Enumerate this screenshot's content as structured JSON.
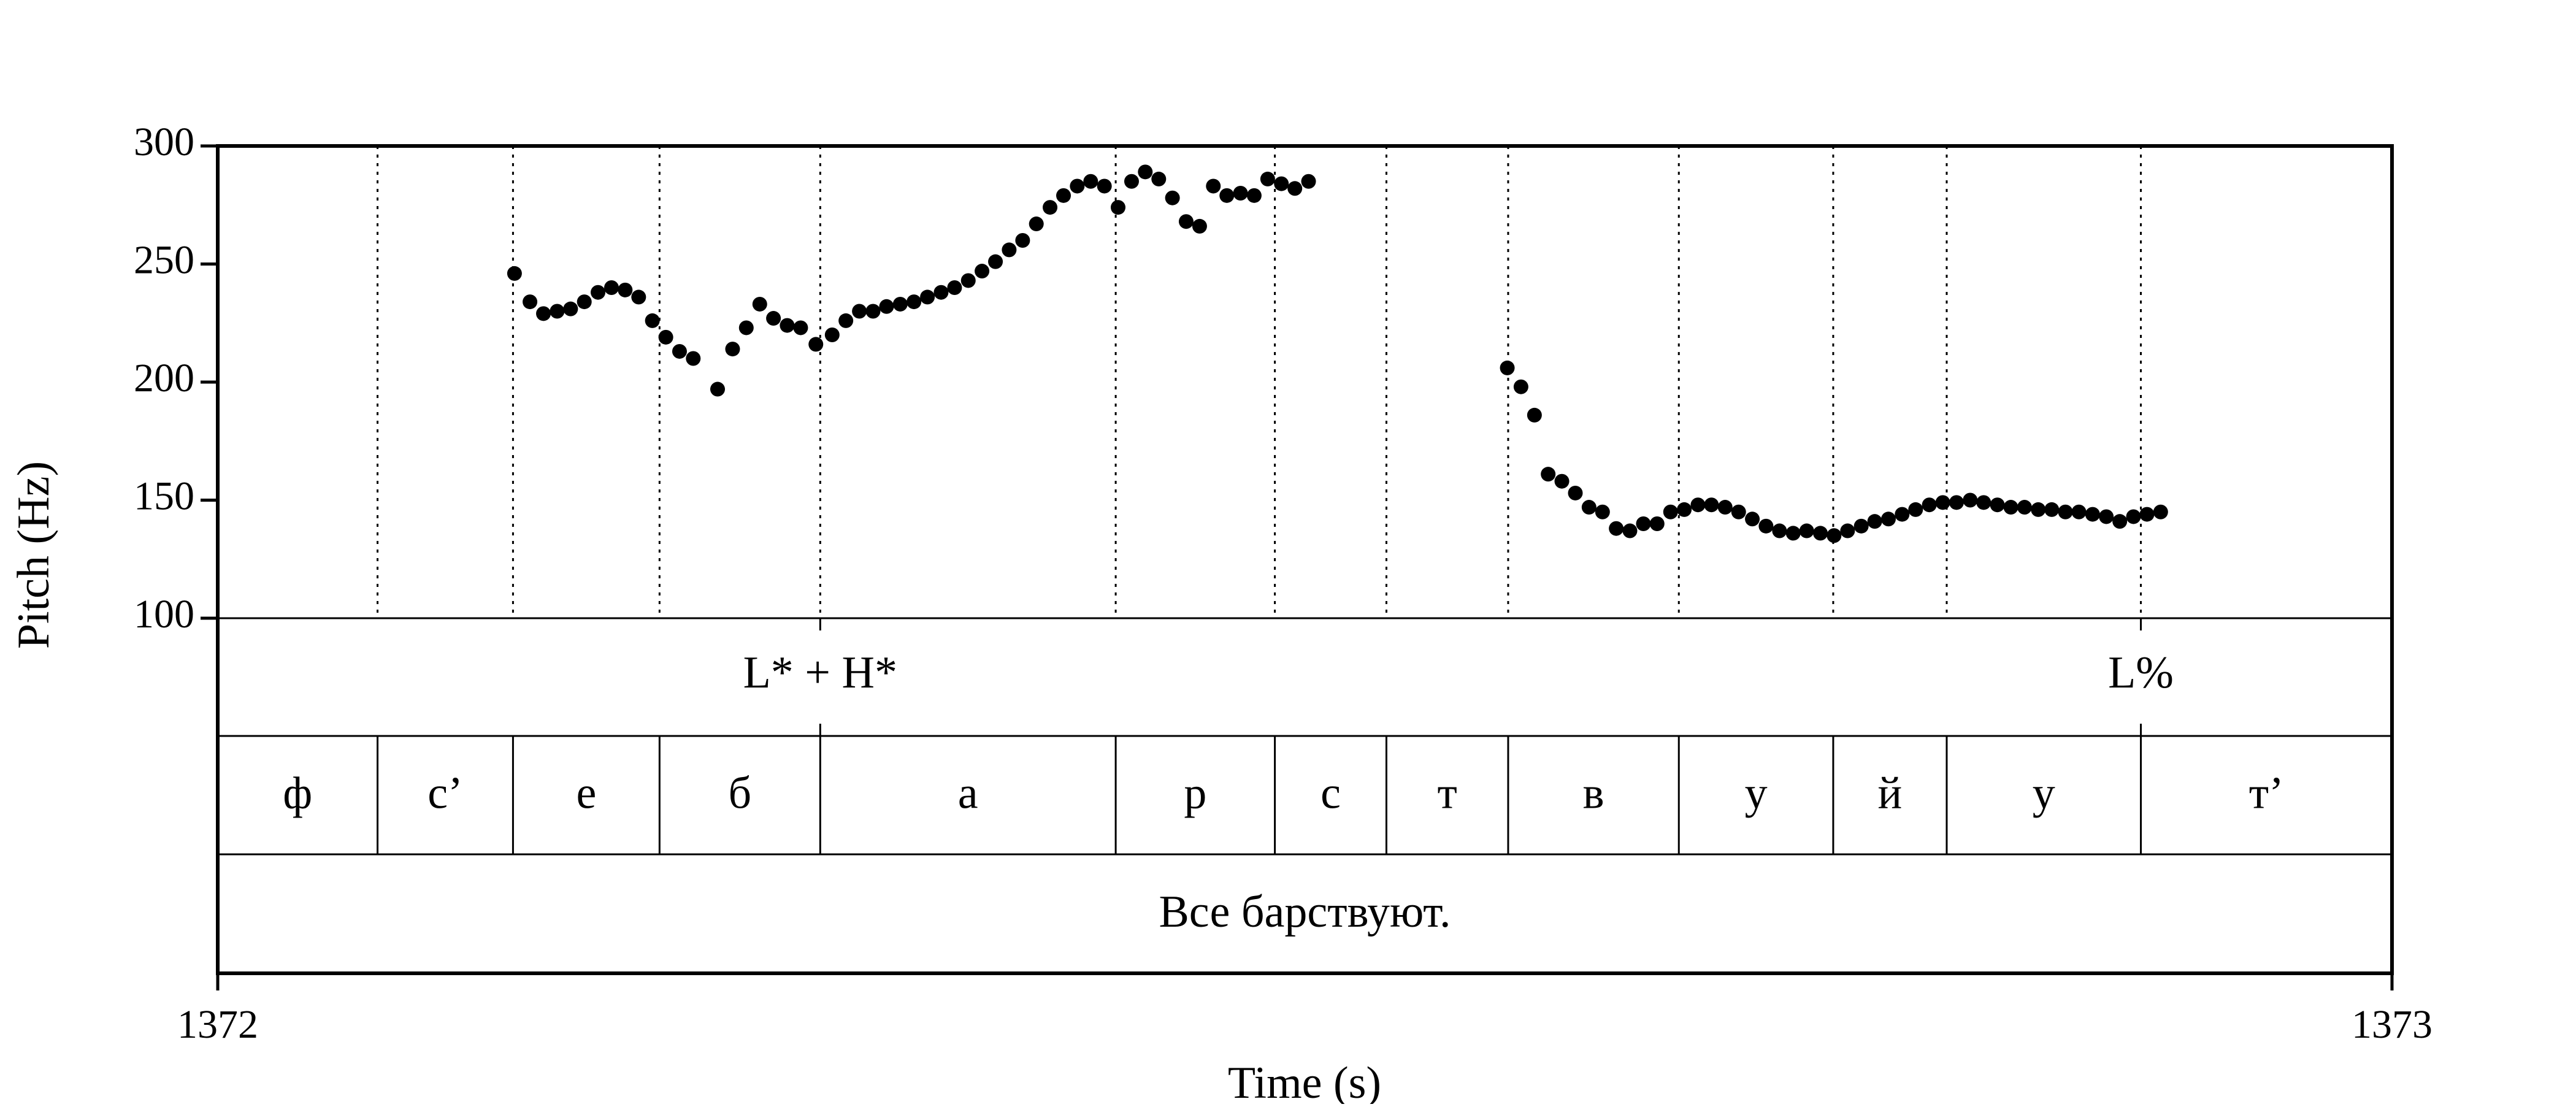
{
  "chart_data": {
    "type": "scatter",
    "xlabel": "Time (s)",
    "ylabel": "Pitch (Hz)",
    "xlim": [
      1372,
      1373
    ],
    "ylim": [
      100,
      300
    ],
    "x_tick_labels": [
      "1372",
      "1373"
    ],
    "y_ticks": [
      100,
      150,
      200,
      250,
      300
    ],
    "y_tick_labels": [
      "100",
      "150",
      "200",
      "250",
      "300"
    ],
    "grid": "dotted vertical lines at segment boundaries",
    "series": [
      {
        "marker_color": "#000000",
        "points": [
          [
            1372.1365,
            246
          ],
          [
            1372.1436,
            234
          ],
          [
            1372.1498,
            229
          ],
          [
            1372.1561,
            230
          ],
          [
            1372.1623,
            231
          ],
          [
            1372.1686,
            234
          ],
          [
            1372.1749,
            238
          ],
          [
            1372.1811,
            240
          ],
          [
            1372.1874,
            239
          ],
          [
            1372.1936,
            236
          ],
          [
            1372.1999,
            226
          ],
          [
            1372.2061,
            219
          ],
          [
            1372.2124,
            213
          ],
          [
            1372.2187,
            210
          ],
          [
            1372.2299,
            197
          ],
          [
            1372.2368,
            214
          ],
          [
            1372.2431,
            223
          ],
          [
            1372.2493,
            233
          ],
          [
            1372.2556,
            227
          ],
          [
            1372.2619,
            224
          ],
          [
            1372.2681,
            223
          ],
          [
            1372.2751,
            216
          ],
          [
            1372.2826,
            220
          ],
          [
            1372.2889,
            226
          ],
          [
            1372.2951,
            230
          ],
          [
            1372.3014,
            230
          ],
          [
            1372.3076,
            232
          ],
          [
            1372.3139,
            233
          ],
          [
            1372.3202,
            234
          ],
          [
            1372.3264,
            236
          ],
          [
            1372.3327,
            238
          ],
          [
            1372.3389,
            240
          ],
          [
            1372.3452,
            243
          ],
          [
            1372.3515,
            247
          ],
          [
            1372.3577,
            251
          ],
          [
            1372.364,
            256
          ],
          [
            1372.3702,
            260
          ],
          [
            1372.3765,
            267
          ],
          [
            1372.3828,
            274
          ],
          [
            1372.389,
            279
          ],
          [
            1372.3953,
            283
          ],
          [
            1372.4015,
            285
          ],
          [
            1372.4078,
            283
          ],
          [
            1372.4141,
            274
          ],
          [
            1372.4203,
            285
          ],
          [
            1372.4266,
            289
          ],
          [
            1372.4328,
            286
          ],
          [
            1372.4391,
            278
          ],
          [
            1372.4454,
            268
          ],
          [
            1372.4516,
            266
          ],
          [
            1372.4579,
            283
          ],
          [
            1372.4641,
            279
          ],
          [
            1372.4704,
            280
          ],
          [
            1372.4767,
            279
          ],
          [
            1372.4829,
            286
          ],
          [
            1372.4892,
            284
          ],
          [
            1372.4954,
            282
          ],
          [
            1372.5017,
            285
          ],
          [
            1372.5931,
            206
          ],
          [
            1372.5994,
            198
          ],
          [
            1372.6056,
            186
          ],
          [
            1372.6119,
            161
          ],
          [
            1372.6182,
            158
          ],
          [
            1372.6244,
            153
          ],
          [
            1372.6307,
            147
          ],
          [
            1372.6369,
            145
          ],
          [
            1372.6432,
            138
          ],
          [
            1372.6495,
            137
          ],
          [
            1372.6557,
            140
          ],
          [
            1372.662,
            140
          ],
          [
            1372.6682,
            145
          ],
          [
            1372.6745,
            146
          ],
          [
            1372.6808,
            148
          ],
          [
            1372.687,
            148
          ],
          [
            1372.6933,
            147
          ],
          [
            1372.6995,
            145
          ],
          [
            1372.7058,
            142
          ],
          [
            1372.7121,
            139
          ],
          [
            1372.7183,
            137
          ],
          [
            1372.7246,
            136
          ],
          [
            1372.7308,
            137
          ],
          [
            1372.7371,
            136
          ],
          [
            1372.7434,
            135
          ],
          [
            1372.7496,
            137
          ],
          [
            1372.7559,
            139
          ],
          [
            1372.7621,
            141
          ],
          [
            1372.7684,
            142
          ],
          [
            1372.7747,
            144
          ],
          [
            1372.7809,
            146
          ],
          [
            1372.7872,
            148
          ],
          [
            1372.7934,
            149
          ],
          [
            1372.7997,
            149
          ],
          [
            1372.806,
            150
          ],
          [
            1372.8122,
            149
          ],
          [
            1372.8185,
            148
          ],
          [
            1372.8247,
            147
          ],
          [
            1372.831,
            147
          ],
          [
            1372.8373,
            146
          ],
          [
            1372.8435,
            146
          ],
          [
            1372.8498,
            145
          ],
          [
            1372.856,
            145
          ],
          [
            1372.8623,
            144
          ],
          [
            1372.8686,
            143
          ],
          [
            1372.8748,
            141
          ],
          [
            1372.8811,
            143
          ],
          [
            1372.8873,
            144
          ],
          [
            1372.8936,
            145
          ]
        ]
      }
    ],
    "boundaries": [
      1372.0735,
      1372.1358,
      1372.2032,
      1372.2771,
      1372.413,
      1372.4862,
      1372.5375,
      1372.5935,
      1372.672,
      1372.743,
      1372.7952,
      1372.8845
    ],
    "tiers": [
      {
        "name": "tones",
        "intervals": [
          {
            "start": 1372.2771,
            "end": 1372.2771,
            "point": true,
            "label": "L* + H*"
          },
          {
            "start": 1372.8845,
            "end": 1372.8845,
            "point": true,
            "label": "L%"
          }
        ]
      },
      {
        "name": "segments",
        "intervals": [
          {
            "start": 1372.0,
            "end": 1372.0735,
            "label": "ф"
          },
          {
            "start": 1372.0735,
            "end": 1372.1358,
            "label": "с’"
          },
          {
            "start": 1372.1358,
            "end": 1372.2032,
            "label": "е"
          },
          {
            "start": 1372.2032,
            "end": 1372.2771,
            "label": "б"
          },
          {
            "start": 1372.2771,
            "end": 1372.413,
            "label": "а"
          },
          {
            "start": 1372.413,
            "end": 1372.4862,
            "label": "р"
          },
          {
            "start": 1372.4862,
            "end": 1372.5375,
            "label": "с"
          },
          {
            "start": 1372.5375,
            "end": 1372.5935,
            "label": "т"
          },
          {
            "start": 1372.5935,
            "end": 1372.672,
            "label": "в"
          },
          {
            "start": 1372.672,
            "end": 1372.743,
            "label": "у"
          },
          {
            "start": 1372.743,
            "end": 1372.7952,
            "label": "й"
          },
          {
            "start": 1372.7952,
            "end": 1372.8845,
            "label": "у"
          },
          {
            "start": 1372.8845,
            "end": 1373.0,
            "label": "т’"
          }
        ]
      },
      {
        "name": "sentence",
        "intervals": [
          {
            "start": 1372.0,
            "end": 1373.0,
            "label": "Все барствуют."
          }
        ]
      }
    ]
  }
}
